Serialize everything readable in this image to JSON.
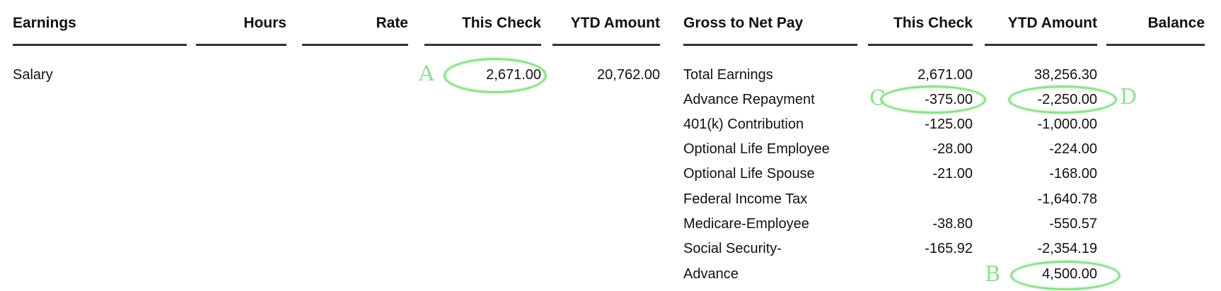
{
  "earnings": {
    "headers": [
      "Earnings",
      "Hours",
      "Rate",
      "This Check",
      "YTD Amount"
    ],
    "rows": [
      {
        "name": "Salary",
        "hours": "",
        "rate": "",
        "this_check": "2,671.00",
        "ytd": "20,762.00"
      }
    ]
  },
  "gross_to_net": {
    "headers": [
      "Gross to Net Pay",
      "This Check",
      "YTD Amount",
      "Balance"
    ],
    "rows": [
      {
        "name": "Total Earnings",
        "this_check": "2,671.00",
        "ytd": "38,256.30",
        "balance": ""
      },
      {
        "name": "Advance Repayment",
        "this_check": "-375.00",
        "ytd": "-2,250.00",
        "balance": ""
      },
      {
        "name": "401(k) Contribution",
        "this_check": "-125.00",
        "ytd": "-1,000.00",
        "balance": ""
      },
      {
        "name": "Optional Life Employee",
        "this_check": "-28.00",
        "ytd": "-224.00",
        "balance": ""
      },
      {
        "name": "Optional Life Spouse",
        "this_check": "-21.00",
        "ytd": "-168.00",
        "balance": ""
      },
      {
        "name": "Federal Income Tax",
        "this_check": "",
        "ytd": "-1,640.78",
        "balance": ""
      },
      {
        "name": "Medicare-Employee",
        "this_check": "-38.80",
        "ytd": "-550.57",
        "balance": ""
      },
      {
        "name": "Social Security-",
        "this_check": "-165.92",
        "ytd": "-2,354.19",
        "balance": ""
      },
      {
        "name": "Advance",
        "this_check": "",
        "ytd": "4,500.00",
        "balance": ""
      }
    ]
  },
  "annotations": {
    "a": "A",
    "b": "B",
    "c": "C",
    "d": "D",
    "color": "#8fdf8f"
  }
}
